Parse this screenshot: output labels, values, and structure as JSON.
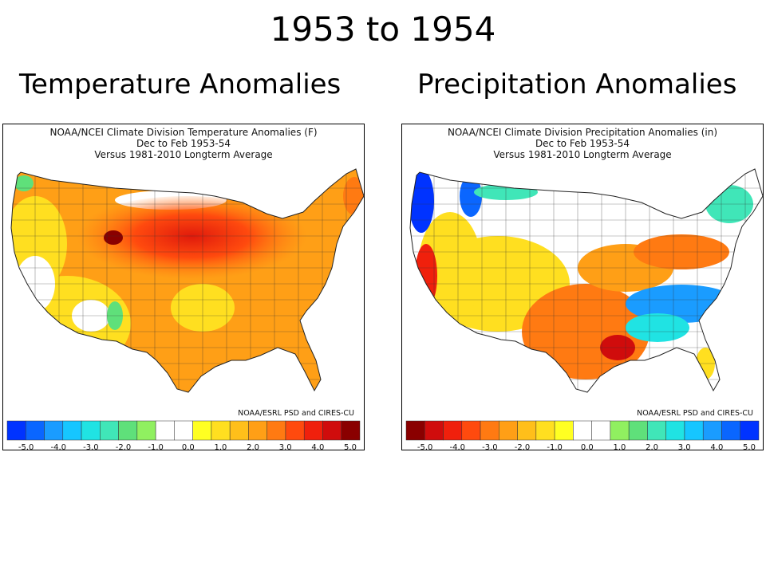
{
  "slide": {
    "title": "1953 to 1954",
    "left_heading": "Temperature Anomalies",
    "right_heading": "Precipitation Anomalies"
  },
  "temperature_map": {
    "header_line1": "NOAA/NCEI Climate Division Temperature Anomalies (F)",
    "header_line2": "Dec to Feb 1953-54",
    "header_line3": "Versus 1981-2010 Longterm Average",
    "credit": "NOAA/ESRL PSD and CIRES-CU",
    "colorbar_colors": [
      "#0033ff",
      "#0a66ff",
      "#1a9cff",
      "#16c6ff",
      "#20e3e3",
      "#40e6b8",
      "#5fe07a",
      "#90f060",
      "#ffffff",
      "#ffffff",
      "#ffff22",
      "#ffdf20",
      "#ffbf1a",
      "#ff9f16",
      "#ff7a12",
      "#ff4a0e",
      "#f0200c",
      "#d00c0c",
      "#8a0000"
    ],
    "colorbar_tick_labels": [
      "-5.0",
      "-4.0",
      "-3.0",
      "-2.0",
      "-1.0",
      "0.0",
      "1.0",
      "2.0",
      "3.0",
      "4.0",
      "5.0"
    ]
  },
  "precipitation_map": {
    "header_line1": "NOAA/NCEI Climate Division Precipitation Anomalies (in)",
    "header_line2": "Dec to Feb 1953-54",
    "header_line3": "Versus 1981-2010 Longterm Average",
    "credit": "NOAA/ESRL PSD and CIRES-CU",
    "colorbar_colors": [
      "#8a0000",
      "#d00c0c",
      "#f0200c",
      "#ff4a0e",
      "#ff7a12",
      "#ff9f16",
      "#ffbf1a",
      "#ffdf20",
      "#ffff22",
      "#ffffff",
      "#ffffff",
      "#90f060",
      "#5fe07a",
      "#40e6b8",
      "#20e3e3",
      "#16c6ff",
      "#1a9cff",
      "#0a66ff",
      "#0033ff"
    ],
    "colorbar_tick_labels": [
      "-5.0",
      "-4.0",
      "-3.0",
      "-2.0",
      "-1.0",
      "0.0",
      "1.0",
      "2.0",
      "3.0",
      "4.0",
      "5.0"
    ]
  }
}
